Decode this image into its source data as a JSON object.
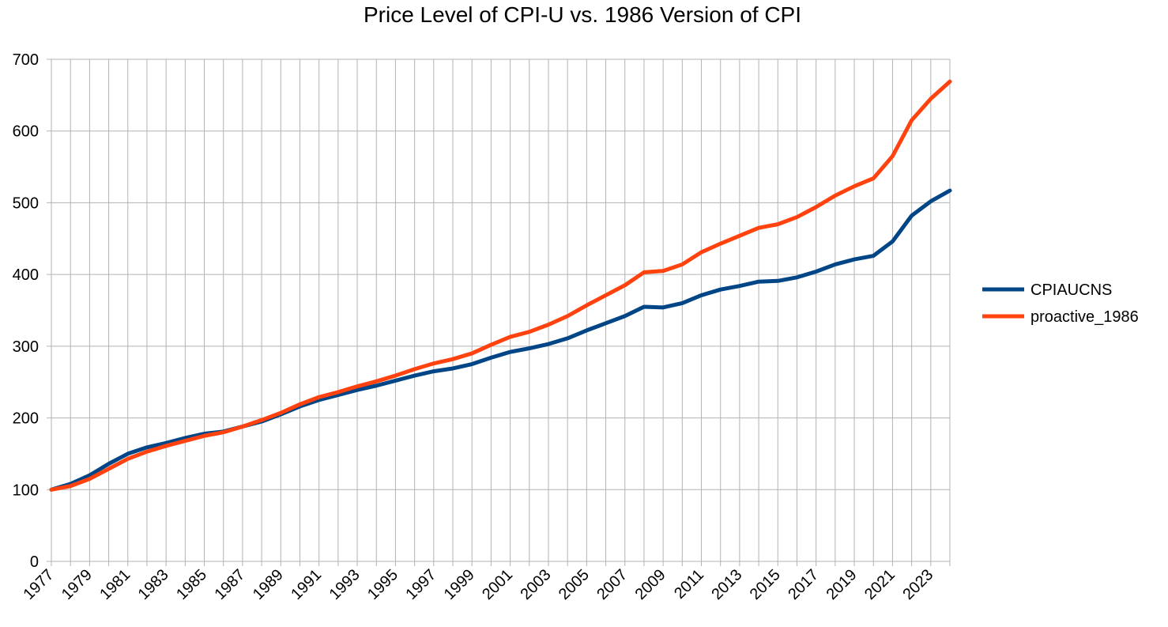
{
  "chart_data": {
    "type": "line",
    "title": "Price Level of CPI-U vs. 1986 Version of CPI",
    "xlabel": "",
    "ylabel": "",
    "x": [
      1977,
      1978,
      1979,
      1980,
      1981,
      1982,
      1983,
      1984,
      1985,
      1986,
      1987,
      1988,
      1989,
      1990,
      1991,
      1992,
      1993,
      1994,
      1995,
      1996,
      1997,
      1998,
      1999,
      2000,
      2001,
      2002,
      2003,
      2004,
      2005,
      2006,
      2007,
      2008,
      2009,
      2010,
      2011,
      2012,
      2013,
      2014,
      2015,
      2016,
      2017,
      2018,
      2019,
      2020,
      2021,
      2022,
      2023,
      2024
    ],
    "xtick_labels": [
      "1977",
      "1979",
      "1981",
      "1983",
      "1985",
      "1987",
      "1989",
      "1991",
      "1993",
      "1995",
      "1997",
      "1999",
      "2001",
      "2003",
      "2005",
      "2007",
      "2009",
      "2011",
      "2013",
      "2015",
      "2017",
      "2019",
      "2021",
      "2023"
    ],
    "ylim": [
      0,
      700
    ],
    "yticks": [
      0,
      100,
      200,
      300,
      400,
      500,
      600,
      700
    ],
    "grid": true,
    "legend_position": "right",
    "series": [
      {
        "name": "CPIAUCNS",
        "color": "#004586",
        "values": [
          100,
          108,
          120,
          136,
          150,
          159,
          165,
          172,
          178,
          181,
          188,
          195,
          205,
          216,
          225,
          232,
          239,
          245,
          252,
          259,
          265,
          269,
          275,
          284,
          292,
          297,
          303,
          311,
          322,
          332,
          342,
          355,
          354,
          360,
          371,
          379,
          384,
          390,
          391,
          396,
          404,
          414,
          421,
          426,
          446,
          482,
          502,
          517
        ]
      },
      {
        "name": "proactive_1986",
        "color": "#ff420e",
        "values": [
          100,
          105,
          115,
          129,
          143,
          153,
          161,
          168,
          175,
          180,
          188,
          197,
          207,
          219,
          229,
          236,
          244,
          251,
          259,
          268,
          276,
          282,
          290,
          302,
          313,
          320,
          330,
          342,
          357,
          371,
          385,
          403,
          405,
          414,
          431,
          443,
          454,
          465,
          470,
          480,
          494,
          510,
          523,
          534,
          565,
          615,
          645,
          669
        ]
      }
    ]
  }
}
